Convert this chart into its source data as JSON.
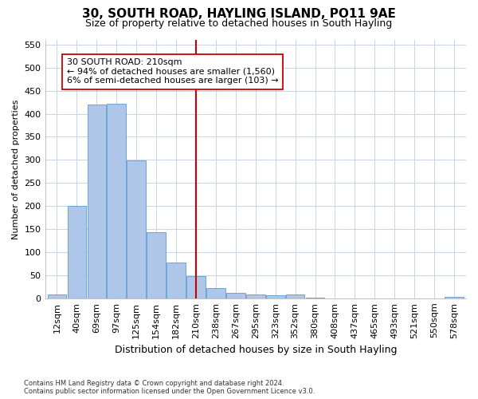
{
  "title": "30, SOUTH ROAD, HAYLING ISLAND, PO11 9AE",
  "subtitle": "Size of property relative to detached houses in South Hayling",
  "xlabel": "Distribution of detached houses by size in South Hayling",
  "ylabel": "Number of detached properties",
  "categories": [
    "12sqm",
    "40sqm",
    "69sqm",
    "97sqm",
    "125sqm",
    "154sqm",
    "182sqm",
    "210sqm",
    "238sqm",
    "267sqm",
    "295sqm",
    "323sqm",
    "352sqm",
    "380sqm",
    "408sqm",
    "437sqm",
    "465sqm",
    "493sqm",
    "521sqm",
    "550sqm",
    "578sqm"
  ],
  "bar_heights": [
    8,
    200,
    420,
    422,
    299,
    143,
    78,
    48,
    23,
    12,
    8,
    6,
    8,
    2,
    0,
    0,
    0,
    0,
    0,
    0,
    3
  ],
  "bar_color": "#aec6e8",
  "bar_edge_color": "#5b9bd5",
  "vline_x_index": 7,
  "vline_color": "#cc0000",
  "annotation_text": "30 SOUTH ROAD: 210sqm\n← 94% of detached houses are smaller (1,560)\n6% of semi-detached houses are larger (103) →",
  "annotation_box_color": "#ffffff",
  "annotation_box_edge": "#cc0000",
  "ylim": [
    0,
    560
  ],
  "yticks": [
    0,
    50,
    100,
    150,
    200,
    250,
    300,
    350,
    400,
    450,
    500,
    550
  ],
  "footer_text": "Contains HM Land Registry data © Crown copyright and database right 2024.\nContains public sector information licensed under the Open Government Licence v3.0.",
  "background_color": "#ffffff",
  "grid_color": "#c8d4e8",
  "title_fontsize": 11,
  "subtitle_fontsize": 9,
  "xlabel_fontsize": 9,
  "ylabel_fontsize": 8,
  "tick_fontsize": 8,
  "annotation_fontsize": 8,
  "footer_fontsize": 6
}
